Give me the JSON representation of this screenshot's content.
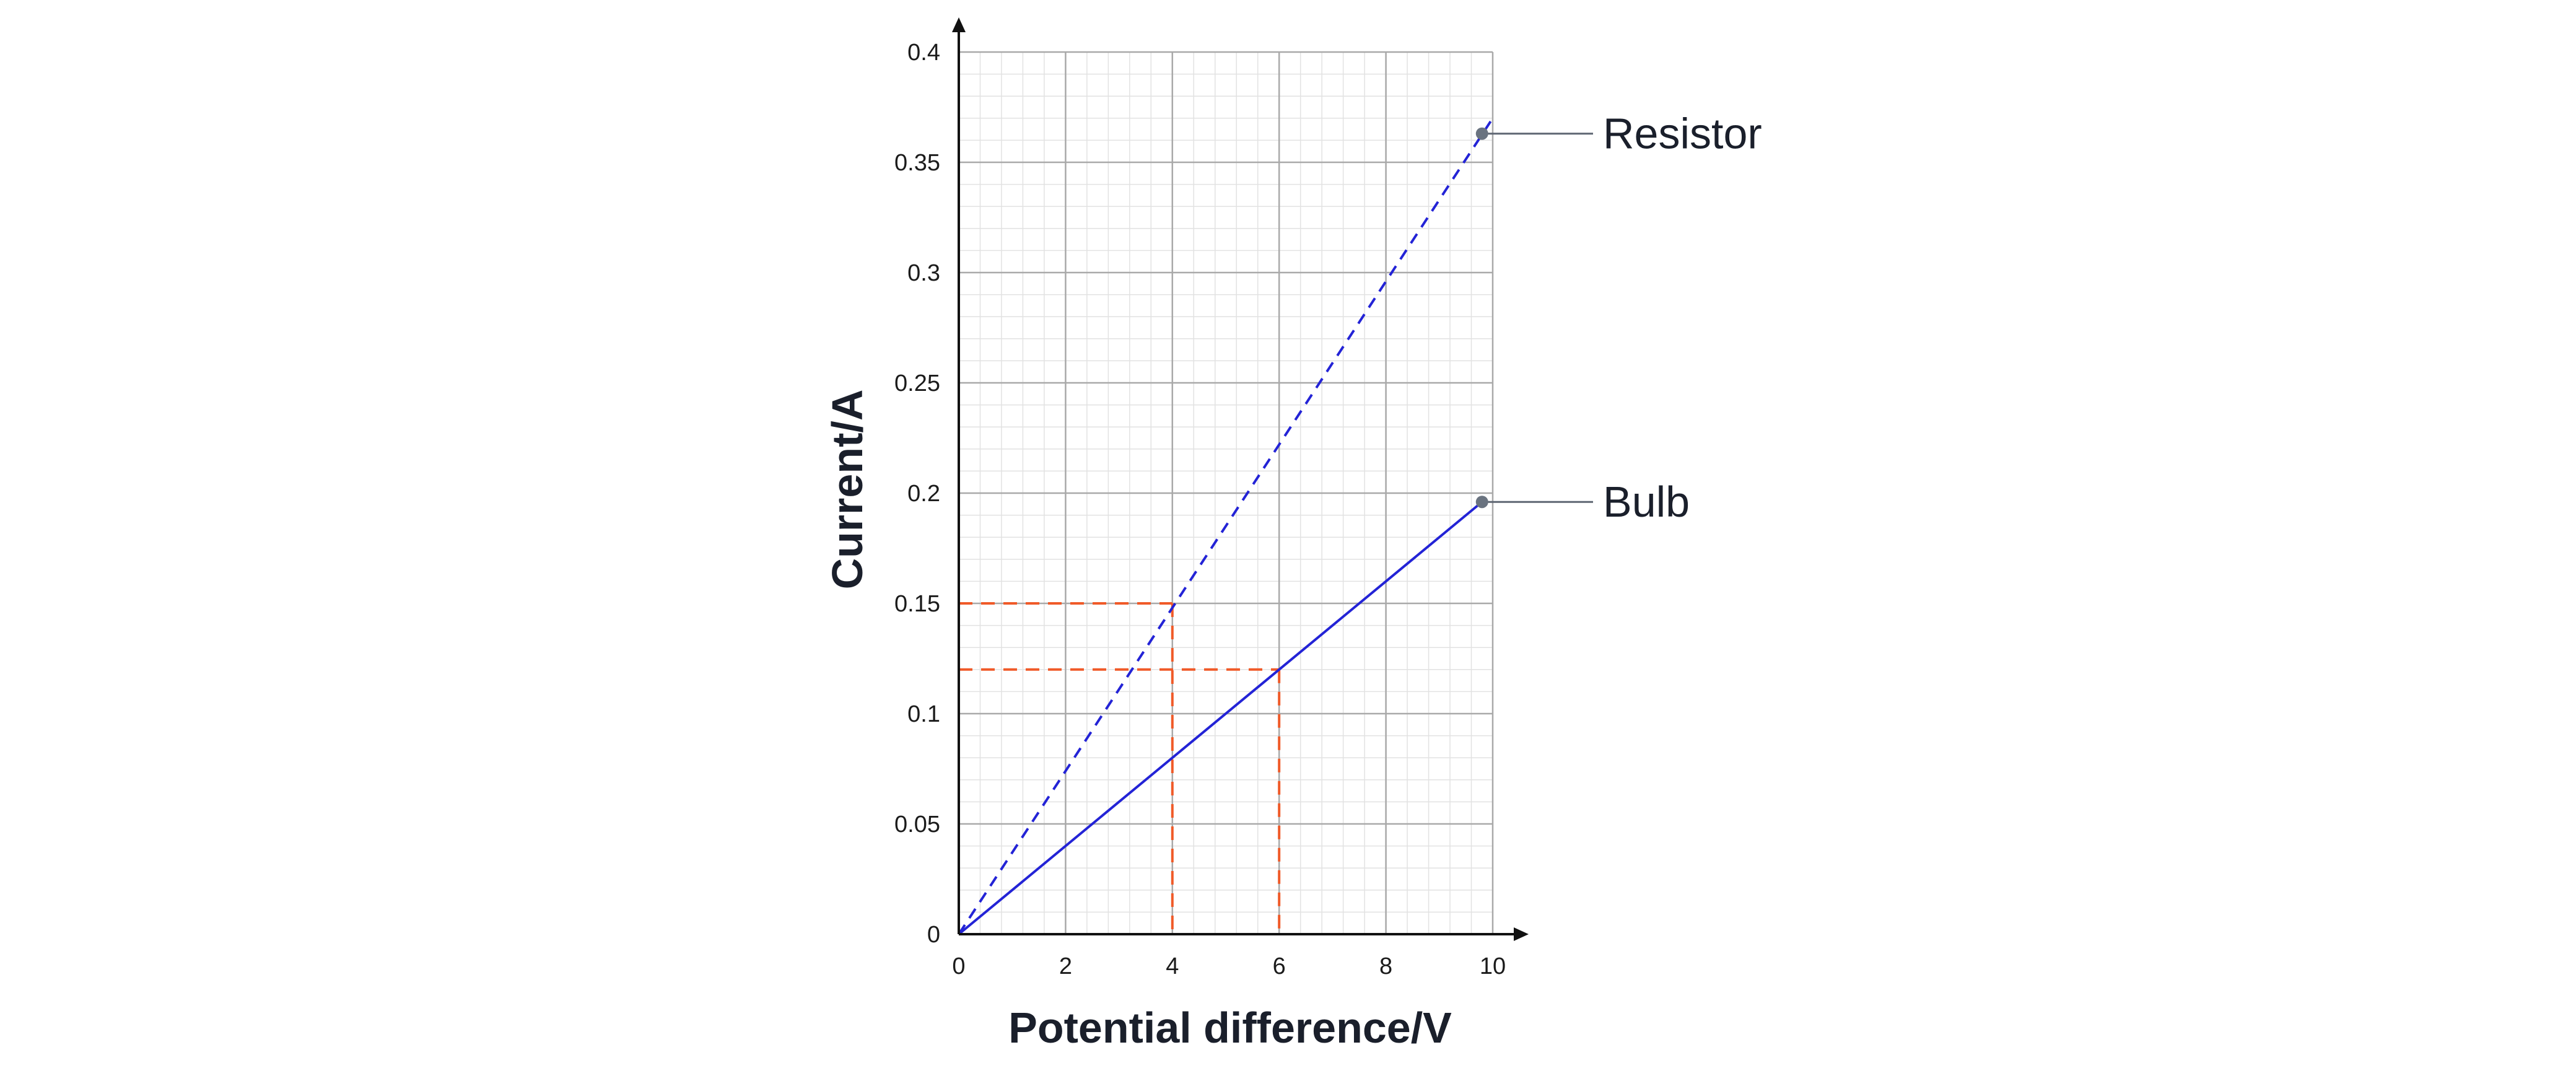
{
  "chart_data": {
    "type": "line",
    "xlabel": "Potential difference/V",
    "ylabel": "Current/A",
    "xlim": [
      0,
      10
    ],
    "ylim": [
      0,
      0.4
    ],
    "x_ticks": [
      "0",
      "2",
      "4",
      "6",
      "8",
      "10"
    ],
    "y_ticks": [
      "0",
      "0.05",
      "0.1",
      "0.15",
      "0.2",
      "0.25",
      "0.3",
      "0.35",
      "0.4"
    ],
    "grid": true,
    "series": [
      {
        "name": "Resistor",
        "style": "dashed",
        "color": "#2323d6",
        "points": [
          [
            0,
            0
          ],
          [
            10,
            0.37
          ]
        ],
        "label_point": [
          9.8,
          0.363
        ]
      },
      {
        "name": "Bulb",
        "style": "solid",
        "color": "#2323d6",
        "points": [
          [
            0,
            0
          ],
          [
            9.8,
            0.196
          ]
        ],
        "label_point": [
          9.8,
          0.196
        ]
      }
    ],
    "guides": [
      {
        "x": 4,
        "y": 0.15
      },
      {
        "x": 6,
        "y": 0.12
      }
    ],
    "guide_color": "#f05a28"
  }
}
